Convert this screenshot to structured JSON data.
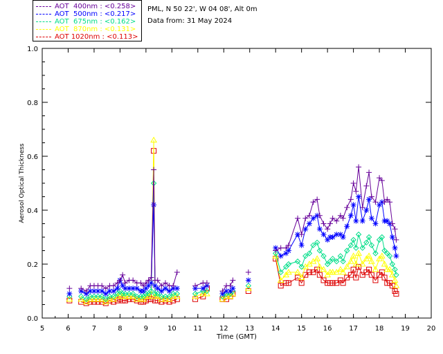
{
  "header": {
    "station": "PML, N 50 22', W 04 08', Alt 0m",
    "date_line": "Data from: 31 May 2024"
  },
  "chart_data": {
    "type": "scatter",
    "title": "",
    "xlabel": "Time (GMT)",
    "ylabel": "Aerosol Optical Thickness",
    "xlim": [
      5,
      20
    ],
    "ylim": [
      0.0,
      1.0
    ],
    "x_ticks": [
      "5",
      "6",
      "7",
      "8",
      "9",
      "10",
      "11",
      "12",
      "13",
      "14",
      "15",
      "16",
      "17",
      "18",
      "19",
      "20"
    ],
    "y_ticks": [
      "0.0",
      "0.2",
      "0.4",
      "0.6",
      "0.8",
      "1.0"
    ],
    "grid": false,
    "legend_position": "top-left, outside plot",
    "series": [
      {
        "name": "AOT  400nm : <0.258>",
        "color": "#660099",
        "marker": "plus",
        "x": [
          6.05,
          6.5,
          6.7,
          6.85,
          7.0,
          7.15,
          7.3,
          7.45,
          7.6,
          7.75,
          7.9,
          8.0,
          8.1,
          8.2,
          8.35,
          8.5,
          8.65,
          8.8,
          8.9,
          9.0,
          9.1,
          9.2,
          9.3,
          9.35,
          9.45,
          9.6,
          9.75,
          9.9,
          10.05,
          10.2,
          10.9,
          11.2,
          11.35,
          11.95,
          12.1,
          12.25,
          12.35,
          12.95,
          14.0,
          14.2,
          14.4,
          14.5,
          14.85,
          15.0,
          15.15,
          15.3,
          15.45,
          15.6,
          15.7,
          15.85,
          16.0,
          16.1,
          16.2,
          16.35,
          16.5,
          16.6,
          16.75,
          16.9,
          17.0,
          17.1,
          17.2,
          17.35,
          17.5,
          17.6,
          17.7,
          17.85,
          18.0,
          18.1,
          18.2,
          18.3,
          18.4,
          18.5,
          18.6,
          18.65
        ],
        "y": [
          0.11,
          0.11,
          0.1,
          0.12,
          0.12,
          0.12,
          0.12,
          0.11,
          0.12,
          0.12,
          0.13,
          0.14,
          0.16,
          0.13,
          0.14,
          0.14,
          0.13,
          0.13,
          0.12,
          0.13,
          0.14,
          0.15,
          0.55,
          0.14,
          0.14,
          0.12,
          0.13,
          0.12,
          0.12,
          0.17,
          0.12,
          0.13,
          0.13,
          0.1,
          0.12,
          0.12,
          0.14,
          0.17,
          0.25,
          0.26,
          0.26,
          0.27,
          0.37,
          0.31,
          0.37,
          0.38,
          0.43,
          0.44,
          0.38,
          0.35,
          0.33,
          0.35,
          0.37,
          0.36,
          0.38,
          0.37,
          0.41,
          0.44,
          0.5,
          0.47,
          0.56,
          0.41,
          0.49,
          0.54,
          0.45,
          0.43,
          0.52,
          0.51,
          0.43,
          0.44,
          0.43,
          0.35,
          0.33,
          0.29
        ]
      },
      {
        "name": "AOT  500nm : <0.217>",
        "color": "#0000ff",
        "marker": "asterisk",
        "x": [
          6.05,
          6.5,
          6.7,
          6.85,
          7.0,
          7.15,
          7.3,
          7.45,
          7.6,
          7.75,
          7.9,
          8.0,
          8.1,
          8.2,
          8.35,
          8.5,
          8.65,
          8.8,
          8.9,
          9.0,
          9.1,
          9.2,
          9.3,
          9.35,
          9.45,
          9.6,
          9.75,
          9.9,
          10.05,
          10.2,
          10.9,
          11.2,
          11.35,
          11.95,
          12.1,
          12.25,
          12.35,
          12.95,
          14.0,
          14.2,
          14.4,
          14.5,
          14.85,
          15.0,
          15.15,
          15.3,
          15.45,
          15.6,
          15.7,
          15.85,
          16.0,
          16.1,
          16.2,
          16.35,
          16.5,
          16.6,
          16.75,
          16.9,
          17.0,
          17.1,
          17.2,
          17.35,
          17.5,
          17.6,
          17.7,
          17.85,
          18.0,
          18.1,
          18.2,
          18.3,
          18.4,
          18.5,
          18.6,
          18.65
        ],
        "y": [
          0.09,
          0.1,
          0.09,
          0.1,
          0.1,
          0.1,
          0.1,
          0.09,
          0.1,
          0.1,
          0.11,
          0.14,
          0.12,
          0.11,
          0.11,
          0.11,
          0.11,
          0.1,
          0.1,
          0.11,
          0.12,
          0.13,
          0.42,
          0.12,
          0.11,
          0.1,
          0.11,
          0.1,
          0.11,
          0.11,
          0.11,
          0.11,
          0.12,
          0.09,
          0.1,
          0.1,
          0.11,
          0.14,
          0.26,
          0.23,
          0.24,
          0.25,
          0.31,
          0.27,
          0.33,
          0.35,
          0.37,
          0.38,
          0.33,
          0.31,
          0.29,
          0.3,
          0.3,
          0.31,
          0.31,
          0.3,
          0.34,
          0.38,
          0.42,
          0.36,
          0.45,
          0.36,
          0.4,
          0.44,
          0.37,
          0.35,
          0.42,
          0.43,
          0.36,
          0.36,
          0.35,
          0.3,
          0.26,
          0.23
        ]
      },
      {
        "name": "AOT  675nm : <0.162>",
        "color": "#00dd88",
        "marker": "diamond",
        "x": [
          6.05,
          6.5,
          6.7,
          6.85,
          7.0,
          7.15,
          7.3,
          7.45,
          7.6,
          7.75,
          7.9,
          8.0,
          8.1,
          8.2,
          8.35,
          8.5,
          8.65,
          8.8,
          8.9,
          9.0,
          9.1,
          9.2,
          9.3,
          9.35,
          9.45,
          9.6,
          9.75,
          9.9,
          10.05,
          10.2,
          10.9,
          11.2,
          11.35,
          11.95,
          12.1,
          12.25,
          12.35,
          12.95,
          14.0,
          14.2,
          14.4,
          14.5,
          14.85,
          15.0,
          15.15,
          15.3,
          15.45,
          15.6,
          15.7,
          15.85,
          16.0,
          16.1,
          16.2,
          16.35,
          16.5,
          16.6,
          16.75,
          16.9,
          17.0,
          17.1,
          17.2,
          17.35,
          17.5,
          17.6,
          17.7,
          17.85,
          18.0,
          18.1,
          18.2,
          18.3,
          18.4,
          18.5,
          18.6,
          18.65
        ],
        "y": [
          0.08,
          0.08,
          0.07,
          0.08,
          0.08,
          0.08,
          0.08,
          0.07,
          0.08,
          0.08,
          0.09,
          0.1,
          0.09,
          0.09,
          0.09,
          0.09,
          0.08,
          0.08,
          0.08,
          0.09,
          0.09,
          0.1,
          0.5,
          0.09,
          0.09,
          0.08,
          0.08,
          0.08,
          0.09,
          0.09,
          0.09,
          0.1,
          0.1,
          0.08,
          0.09,
          0.09,
          0.1,
          0.12,
          0.24,
          0.17,
          0.19,
          0.2,
          0.21,
          0.19,
          0.23,
          0.24,
          0.27,
          0.28,
          0.25,
          0.23,
          0.2,
          0.21,
          0.22,
          0.21,
          0.23,
          0.21,
          0.25,
          0.27,
          0.29,
          0.26,
          0.31,
          0.26,
          0.28,
          0.3,
          0.27,
          0.24,
          0.29,
          0.3,
          0.25,
          0.24,
          0.23,
          0.2,
          0.18,
          0.16
        ]
      },
      {
        "name": "AOT  870nm : <0.131>",
        "color": "#ffff00",
        "marker": "triangle",
        "x": [
          6.05,
          6.5,
          6.7,
          6.85,
          7.0,
          7.15,
          7.3,
          7.45,
          7.6,
          7.75,
          7.9,
          8.0,
          8.1,
          8.2,
          8.35,
          8.5,
          8.65,
          8.8,
          8.9,
          9.0,
          9.1,
          9.2,
          9.3,
          9.35,
          9.45,
          9.6,
          9.75,
          9.9,
          10.05,
          10.2,
          10.9,
          11.2,
          11.35,
          11.95,
          12.1,
          12.25,
          12.35,
          12.95,
          14.0,
          14.2,
          14.4,
          14.5,
          14.85,
          15.0,
          15.15,
          15.3,
          15.45,
          15.6,
          15.7,
          15.85,
          16.0,
          16.1,
          16.2,
          16.35,
          16.5,
          16.6,
          16.75,
          16.9,
          17.0,
          17.1,
          17.2,
          17.35,
          17.5,
          17.6,
          17.7,
          17.85,
          18.0,
          18.1,
          18.2,
          18.3,
          18.4,
          18.5,
          18.6,
          18.65
        ],
        "y": [
          0.07,
          0.07,
          0.06,
          0.07,
          0.07,
          0.07,
          0.07,
          0.06,
          0.07,
          0.07,
          0.08,
          0.09,
          0.08,
          0.08,
          0.08,
          0.08,
          0.07,
          0.07,
          0.07,
          0.08,
          0.08,
          0.09,
          0.66,
          0.08,
          0.08,
          0.07,
          0.07,
          0.07,
          0.08,
          0.08,
          0.08,
          0.09,
          0.09,
          0.07,
          0.08,
          0.08,
          0.09,
          0.11,
          0.23,
          0.14,
          0.16,
          0.17,
          0.17,
          0.15,
          0.19,
          0.2,
          0.21,
          0.22,
          0.19,
          0.18,
          0.16,
          0.17,
          0.17,
          0.17,
          0.18,
          0.17,
          0.19,
          0.21,
          0.23,
          0.2,
          0.24,
          0.2,
          0.22,
          0.23,
          0.21,
          0.18,
          0.22,
          0.23,
          0.2,
          0.18,
          0.18,
          0.16,
          0.14,
          0.12
        ]
      },
      {
        "name": "AOT 1020nm : <0.113>",
        "color": "#dd0000",
        "marker": "square",
        "x": [
          6.05,
          6.5,
          6.7,
          6.85,
          7.0,
          7.15,
          7.3,
          7.45,
          7.6,
          7.75,
          7.9,
          8.0,
          8.1,
          8.2,
          8.35,
          8.5,
          8.65,
          8.8,
          8.9,
          9.0,
          9.1,
          9.2,
          9.3,
          9.35,
          9.45,
          9.6,
          9.75,
          9.9,
          10.05,
          10.2,
          10.9,
          11.2,
          11.35,
          11.95,
          12.1,
          12.25,
          12.35,
          12.95,
          14.0,
          14.2,
          14.4,
          14.5,
          14.85,
          15.0,
          15.15,
          15.3,
          15.45,
          15.6,
          15.7,
          15.85,
          16.0,
          16.1,
          16.2,
          16.35,
          16.5,
          16.6,
          16.75,
          16.9,
          17.0,
          17.1,
          17.2,
          17.35,
          17.5,
          17.6,
          17.7,
          17.85,
          18.0,
          18.1,
          18.2,
          18.3,
          18.4,
          18.5,
          18.6,
          18.65
        ],
        "y": [
          0.065,
          0.06,
          0.055,
          0.06,
          0.06,
          0.06,
          0.06,
          0.055,
          0.065,
          0.06,
          0.065,
          0.07,
          0.065,
          0.065,
          0.07,
          0.07,
          0.065,
          0.06,
          0.06,
          0.065,
          0.07,
          0.07,
          0.62,
          0.065,
          0.065,
          0.06,
          0.065,
          0.06,
          0.065,
          0.07,
          0.07,
          0.08,
          0.11,
          0.07,
          0.07,
          0.08,
          0.09,
          0.1,
          0.22,
          0.12,
          0.13,
          0.13,
          0.15,
          0.13,
          0.16,
          0.17,
          0.17,
          0.18,
          0.16,
          0.14,
          0.13,
          0.13,
          0.13,
          0.13,
          0.14,
          0.13,
          0.15,
          0.16,
          0.18,
          0.15,
          0.19,
          0.16,
          0.17,
          0.18,
          0.16,
          0.14,
          0.16,
          0.17,
          0.15,
          0.13,
          0.13,
          0.12,
          0.1,
          0.09
        ]
      }
    ]
  }
}
